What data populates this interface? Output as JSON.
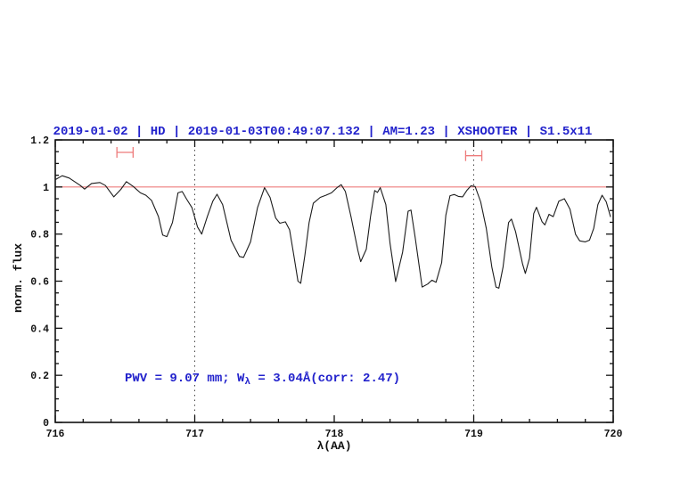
{
  "page": {
    "background": "#ffffff"
  },
  "colors": {
    "accent_blue": "#2222cc",
    "line_red": "#ee7b7b",
    "spectrum_black": "#1c1c1c",
    "axis_black": "#111111",
    "dotted_gray": "#444444"
  },
  "chart_data": {
    "type": "line",
    "title": "2019-01-02 | HD | 2019-01-03T00:49:07.132 | AM=1.23 | XSHOOTER | S1.5x11",
    "xlabel": "λ(AA)",
    "ylabel": "norm. flux",
    "xlim": [
      716,
      720
    ],
    "ylim": [
      0,
      1.2
    ],
    "x_major_ticks": [
      716,
      717,
      718,
      719,
      720
    ],
    "x_tick_labels": [
      "716",
      "717",
      "718",
      "719",
      "720"
    ],
    "x_minor_step": 0.2,
    "y_major_ticks": [
      0,
      0.2,
      0.4,
      0.6,
      0.8,
      1,
      1.2
    ],
    "y_tick_labels": [
      "0",
      "0.2",
      "0.4",
      "0.6",
      "0.8",
      "1",
      "1.2"
    ],
    "y_minor_step": 0.05,
    "grid": false,
    "legend_position": "none",
    "reference_line_y": 1.0,
    "dotted_vlines_x": [
      717,
      719
    ],
    "error_bars": [
      {
        "x": 716.5,
        "y": 1.147,
        "half_width": 0.058
      },
      {
        "x": 719.0,
        "y": 1.133,
        "half_width": 0.058
      }
    ],
    "annotation": {
      "pre": "PWV = 9.07 mm; W",
      "sub": "λ",
      "post": " = 3.04Å(corr: 2.47)"
    },
    "series": [
      {
        "name": "telluric spectrum",
        "points": [
          [
            716.0,
            1.031
          ],
          [
            716.05,
            1.048
          ],
          [
            716.1,
            1.038
          ],
          [
            716.18,
            1.006
          ],
          [
            716.21,
            0.991
          ],
          [
            716.26,
            1.015
          ],
          [
            716.32,
            1.019
          ],
          [
            716.36,
            1.006
          ],
          [
            716.42,
            0.958
          ],
          [
            716.47,
            0.99
          ],
          [
            716.51,
            1.023
          ],
          [
            716.56,
            1.002
          ],
          [
            716.61,
            0.975
          ],
          [
            716.65,
            0.965
          ],
          [
            716.69,
            0.943
          ],
          [
            716.74,
            0.874
          ],
          [
            716.77,
            0.796
          ],
          [
            716.8,
            0.789
          ],
          [
            716.84,
            0.849
          ],
          [
            716.88,
            0.975
          ],
          [
            716.91,
            0.981
          ],
          [
            716.94,
            0.95
          ],
          [
            716.98,
            0.912
          ],
          [
            717.02,
            0.83
          ],
          [
            717.05,
            0.8
          ],
          [
            717.09,
            0.874
          ],
          [
            717.13,
            0.94
          ],
          [
            717.16,
            0.969
          ],
          [
            717.2,
            0.925
          ],
          [
            717.26,
            0.774
          ],
          [
            717.32,
            0.705
          ],
          [
            717.35,
            0.701
          ],
          [
            717.4,
            0.767
          ],
          [
            717.45,
            0.912
          ],
          [
            717.5,
            0.997
          ],
          [
            717.54,
            0.956
          ],
          [
            717.58,
            0.868
          ],
          [
            717.61,
            0.846
          ],
          [
            717.65,
            0.852
          ],
          [
            717.68,
            0.818
          ],
          [
            717.71,
            0.711
          ],
          [
            717.74,
            0.6
          ],
          [
            717.76,
            0.591
          ],
          [
            717.79,
            0.711
          ],
          [
            717.82,
            0.849
          ],
          [
            717.85,
            0.931
          ],
          [
            717.9,
            0.956
          ],
          [
            717.94,
            0.965
          ],
          [
            717.98,
            0.975
          ],
          [
            718.02,
            0.997
          ],
          [
            718.05,
            1.01
          ],
          [
            718.08,
            0.981
          ],
          [
            718.12,
            0.874
          ],
          [
            718.17,
            0.729
          ],
          [
            718.19,
            0.683
          ],
          [
            718.23,
            0.736
          ],
          [
            718.26,
            0.874
          ],
          [
            718.29,
            0.985
          ],
          [
            718.31,
            0.977
          ],
          [
            718.33,
            0.997
          ],
          [
            718.37,
            0.925
          ],
          [
            718.4,
            0.761
          ],
          [
            718.44,
            0.598
          ],
          [
            718.49,
            0.723
          ],
          [
            718.53,
            0.897
          ],
          [
            718.55,
            0.902
          ],
          [
            718.58,
            0.786
          ],
          [
            718.63,
            0.575
          ],
          [
            718.67,
            0.588
          ],
          [
            718.7,
            0.604
          ],
          [
            718.73,
            0.595
          ],
          [
            718.77,
            0.678
          ],
          [
            718.8,
            0.88
          ],
          [
            718.83,
            0.963
          ],
          [
            718.86,
            0.968
          ],
          [
            718.89,
            0.96
          ],
          [
            718.92,
            0.958
          ],
          [
            718.95,
            0.985
          ],
          [
            718.98,
            1.005
          ],
          [
            719.01,
            1.002
          ],
          [
            719.05,
            0.937
          ],
          [
            719.09,
            0.824
          ],
          [
            719.13,
            0.66
          ],
          [
            719.16,
            0.575
          ],
          [
            719.18,
            0.57
          ],
          [
            719.21,
            0.66
          ],
          [
            719.25,
            0.849
          ],
          [
            719.27,
            0.864
          ],
          [
            719.3,
            0.811
          ],
          [
            719.35,
            0.673
          ],
          [
            719.37,
            0.633
          ],
          [
            719.4,
            0.698
          ],
          [
            719.43,
            0.887
          ],
          [
            719.45,
            0.914
          ],
          [
            719.49,
            0.852
          ],
          [
            719.51,
            0.839
          ],
          [
            719.54,
            0.884
          ],
          [
            719.57,
            0.874
          ],
          [
            719.61,
            0.94
          ],
          [
            719.65,
            0.95
          ],
          [
            719.69,
            0.906
          ],
          [
            719.73,
            0.799
          ],
          [
            719.76,
            0.771
          ],
          [
            719.8,
            0.767
          ],
          [
            719.83,
            0.774
          ],
          [
            719.86,
            0.824
          ],
          [
            719.89,
            0.925
          ],
          [
            719.92,
            0.965
          ],
          [
            719.95,
            0.937
          ],
          [
            719.98,
            0.874
          ]
        ]
      }
    ]
  }
}
